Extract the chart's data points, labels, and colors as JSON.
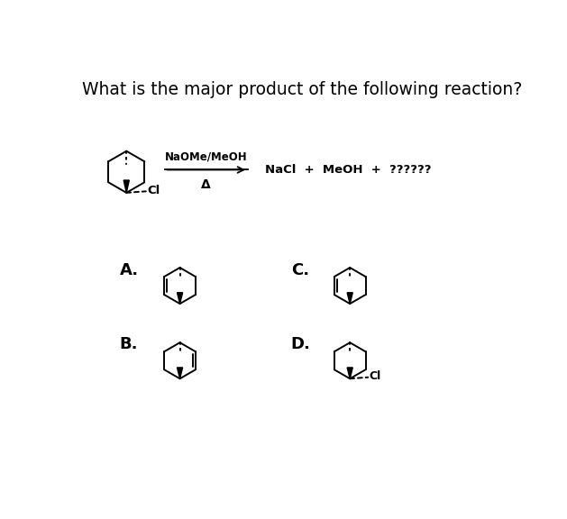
{
  "title": "What is the major product of the following reaction?",
  "title_fontsize": 13.5,
  "reagent_label1": "NaOMe/MeOH",
  "reagent_label2": "Δ",
  "product_label": "NaCl  +  MeOH  +  ??????",
  "option_A": "A.",
  "option_B": "B.",
  "option_C": "C.",
  "option_D": "D.",
  "background_color": "#ffffff",
  "text_color": "#000000",
  "line_color": "#000000"
}
